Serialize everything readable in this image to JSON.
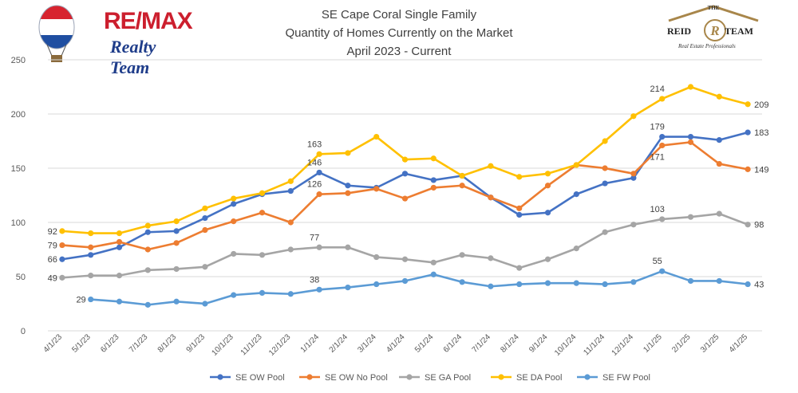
{
  "header": {
    "title_line1": "SE Cape Coral Single Family",
    "title_line2": "Quantity of Homes Currently on the Market",
    "title_line3": "April 2023 - Current"
  },
  "logos": {
    "left_brand": "RE/MAX",
    "left_sub": "Realty Team",
    "right_the": "THE",
    "right_name": "REID",
    "right_team": "TEAM",
    "right_sub": "Real Estate Professionals"
  },
  "chart_data": {
    "type": "line",
    "title": "SE Cape Coral Single Family Quantity of Homes Currently on the Market April 2023 - Current",
    "xlabel": "",
    "ylabel": "",
    "ylim": [
      0,
      250
    ],
    "yticks": [
      0,
      50,
      100,
      150,
      200,
      250
    ],
    "grid": true,
    "legend_position": "bottom",
    "categories": [
      "4/1/23",
      "5/1/23",
      "6/1/23",
      "7/1/23",
      "8/1/23",
      "9/1/23",
      "10/1/23",
      "11/1/23",
      "12/1/23",
      "1/1/24",
      "2/1/24",
      "3/1/24",
      "4/1/24",
      "5/1/24",
      "6/1/24",
      "7/1/24",
      "8/1/24",
      "9/1/24",
      "10/1/24",
      "11/1/24",
      "12/1/24",
      "1/1/25",
      "2/1/25",
      "3/1/25",
      "4/1/25"
    ],
    "series": [
      {
        "name": "SE OW Pool",
        "color": "#4472c4",
        "values": [
          66,
          70,
          77,
          91,
          92,
          104,
          117,
          126,
          129,
          146,
          134,
          132,
          145,
          139,
          143,
          123,
          107,
          109,
          126,
          136,
          141,
          179,
          179,
          176,
          183
        ]
      },
      {
        "name": "SE OW No Pool",
        "color": "#ed7d31",
        "values": [
          79,
          77,
          82,
          75,
          81,
          93,
          101,
          109,
          100,
          126,
          127,
          131,
          122,
          132,
          134,
          123,
          113,
          134,
          153,
          150,
          145,
          171,
          174,
          154,
          149
        ]
      },
      {
        "name": "SE GA Pool",
        "color": "#a5a5a5",
        "values": [
          49,
          51,
          51,
          56,
          57,
          59,
          71,
          70,
          75,
          77,
          77,
          68,
          66,
          63,
          70,
          67,
          58,
          66,
          76,
          91,
          98,
          103,
          105,
          108,
          98
        ]
      },
      {
        "name": "SE DA Pool",
        "color": "#ffc000",
        "values": [
          92,
          90,
          90,
          97,
          101,
          113,
          122,
          127,
          138,
          163,
          164,
          179,
          158,
          159,
          143,
          152,
          142,
          145,
          153,
          175,
          198,
          214,
          225,
          216,
          209
        ]
      },
      {
        "name": "SE FW Pool",
        "color": "#5b9bd5",
        "values": [
          null,
          29,
          27,
          24,
          27,
          25,
          33,
          35,
          34,
          38,
          40,
          43,
          46,
          52,
          45,
          41,
          43,
          44,
          44,
          43,
          45,
          55,
          46,
          46,
          43
        ]
      }
    ],
    "data_labels": [
      {
        "series": 0,
        "index": 0,
        "text": "66",
        "side": "left"
      },
      {
        "series": 0,
        "index": 9,
        "text": "146",
        "side": "above"
      },
      {
        "series": 0,
        "index": 21,
        "text": "179",
        "side": "above"
      },
      {
        "series": 0,
        "index": 24,
        "text": "183",
        "side": "right"
      },
      {
        "series": 1,
        "index": 0,
        "text": "79",
        "side": "left"
      },
      {
        "series": 1,
        "index": 9,
        "text": "126",
        "side": "above"
      },
      {
        "series": 1,
        "index": 21,
        "text": "171",
        "side": "below"
      },
      {
        "series": 1,
        "index": 24,
        "text": "149",
        "side": "right"
      },
      {
        "series": 2,
        "index": 0,
        "text": "49",
        "side": "left"
      },
      {
        "series": 2,
        "index": 9,
        "text": "77",
        "side": "above"
      },
      {
        "series": 2,
        "index": 21,
        "text": "103",
        "side": "above"
      },
      {
        "series": 2,
        "index": 24,
        "text": "98",
        "side": "right"
      },
      {
        "series": 3,
        "index": 0,
        "text": "92",
        "side": "left"
      },
      {
        "series": 3,
        "index": 9,
        "text": "163",
        "side": "above"
      },
      {
        "series": 3,
        "index": 21,
        "text": "214",
        "side": "above"
      },
      {
        "series": 3,
        "index": 24,
        "text": "209",
        "side": "right"
      },
      {
        "series": 4,
        "index": 1,
        "text": "29",
        "side": "left"
      },
      {
        "series": 4,
        "index": 9,
        "text": "38",
        "side": "above"
      },
      {
        "series": 4,
        "index": 21,
        "text": "55",
        "side": "above"
      },
      {
        "series": 4,
        "index": 24,
        "text": "43",
        "side": "right"
      }
    ]
  }
}
